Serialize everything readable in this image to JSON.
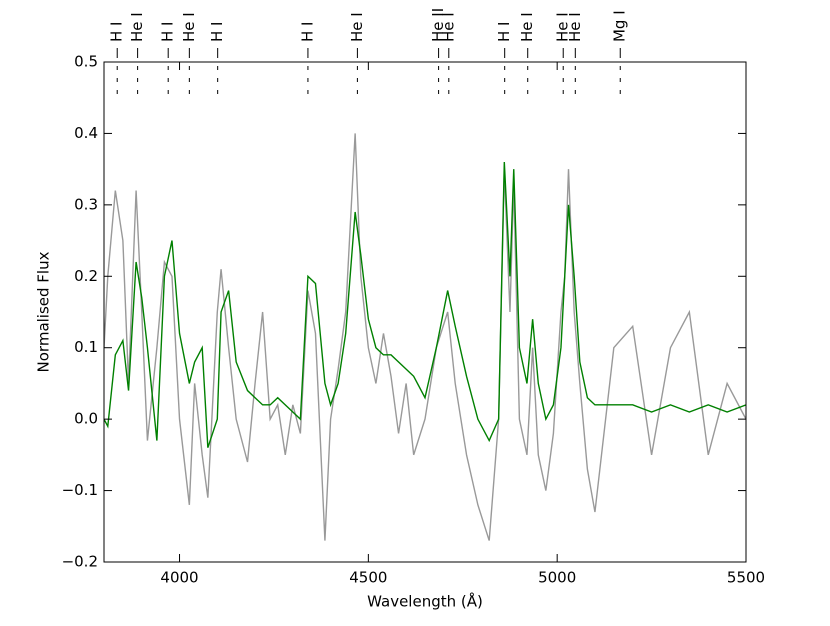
{
  "chart_data": {
    "type": "line",
    "x_label": "Wavelength (Å)",
    "y_label": "Normalised Flux",
    "xlim": [
      3800,
      5500
    ],
    "xticks": [
      4000,
      4500,
      5000,
      5500
    ],
    "ylim": [
      -0.2,
      0.5
    ],
    "yticks": [
      {
        "value": -0.2,
        "label": "−0.2"
      },
      {
        "value": -0.1,
        "label": "−0.1"
      },
      {
        "value": 0,
        "label": "0.0"
      },
      0.1,
      0.2,
      0.3,
      0.4,
      0.5
    ],
    "x": [
      3800,
      3810,
      3830,
      3850,
      3865,
      3885,
      3900,
      3915,
      3940,
      3960,
      3980,
      4000,
      4026,
      4040,
      4060,
      4075,
      4100,
      4110,
      4130,
      4150,
      4180,
      4200,
      4220,
      4240,
      4260,
      4280,
      4300,
      4320,
      4340,
      4360,
      4385,
      4400,
      4420,
      4440,
      4465,
      4480,
      4500,
      4520,
      4540,
      4560,
      4580,
      4600,
      4620,
      4650,
      4680,
      4710,
      4730,
      4760,
      4790,
      4820,
      4845,
      4860,
      4875,
      4885,
      4900,
      4920,
      4935,
      4950,
      4970,
      4990,
      5010,
      5020,
      5030,
      5045,
      5060,
      5080,
      5100,
      5150,
      5200,
      5250,
      5300,
      5350,
      5400,
      5450,
      5500
    ],
    "series": [
      {
        "color": "#999999",
        "values": [
          0.1,
          0.2,
          0.32,
          0.25,
          0.05,
          0.32,
          0.15,
          -0.03,
          0.1,
          0.22,
          0.2,
          0.0,
          -0.12,
          0.05,
          -0.05,
          -0.11,
          0.15,
          0.21,
          0.1,
          0.0,
          -0.06,
          0.05,
          0.15,
          0.0,
          0.02,
          -0.05,
          0.02,
          -0.02,
          0.18,
          0.12,
          -0.17,
          0.0,
          0.07,
          0.15,
          0.4,
          0.2,
          0.1,
          0.05,
          0.12,
          0.06,
          -0.02,
          0.05,
          -0.05,
          0.0,
          0.1,
          0.15,
          0.05,
          -0.05,
          -0.12,
          -0.17,
          0.0,
          0.35,
          0.15,
          0.33,
          0.0,
          -0.05,
          0.1,
          -0.05,
          -0.1,
          -0.02,
          0.15,
          0.2,
          0.35,
          0.15,
          0.05,
          -0.07,
          -0.13,
          0.1,
          0.13,
          -0.05,
          0.1,
          0.15,
          -0.05,
          0.05,
          0.0
        ]
      },
      {
        "color": "#008000",
        "values": [
          0.0,
          -0.01,
          0.09,
          0.11,
          0.04,
          0.22,
          0.17,
          0.1,
          -0.03,
          0.2,
          0.25,
          0.12,
          0.05,
          0.08,
          0.1,
          -0.04,
          0.0,
          0.15,
          0.18,
          0.08,
          0.04,
          0.03,
          0.02,
          0.02,
          0.03,
          0.02,
          0.01,
          0.0,
          0.2,
          0.19,
          0.05,
          0.02,
          0.05,
          0.12,
          0.29,
          0.23,
          0.14,
          0.1,
          0.09,
          0.09,
          0.08,
          0.07,
          0.06,
          0.03,
          0.1,
          0.18,
          0.13,
          0.06,
          0.0,
          -0.03,
          0.0,
          0.36,
          0.2,
          0.35,
          0.1,
          0.05,
          0.14,
          0.05,
          0.0,
          0.02,
          0.1,
          0.2,
          0.3,
          0.2,
          0.08,
          0.03,
          0.02,
          0.02,
          0.02,
          0.01,
          0.02,
          0.01,
          0.02,
          0.01,
          0.02
        ]
      }
    ],
    "line_ids": [
      {
        "wavelength": 3835,
        "label": "H I"
      },
      {
        "wavelength": 3889,
        "label": "He I"
      },
      {
        "wavelength": 3970,
        "label": "H I"
      },
      {
        "wavelength": 4026,
        "label": "He I"
      },
      {
        "wavelength": 4101,
        "label": "H I"
      },
      {
        "wavelength": 4340,
        "label": "H I"
      },
      {
        "wavelength": 4471,
        "label": "He I"
      },
      {
        "wavelength": 4686,
        "label": "He II"
      },
      {
        "wavelength": 4713,
        "label": "He I"
      },
      {
        "wavelength": 4861,
        "label": "H I"
      },
      {
        "wavelength": 4922,
        "label": "He I"
      },
      {
        "wavelength": 5016,
        "label": "He I"
      },
      {
        "wavelength": 5048,
        "label": "He I"
      },
      {
        "wavelength": 5167,
        "label": "Mg I"
      }
    ]
  }
}
